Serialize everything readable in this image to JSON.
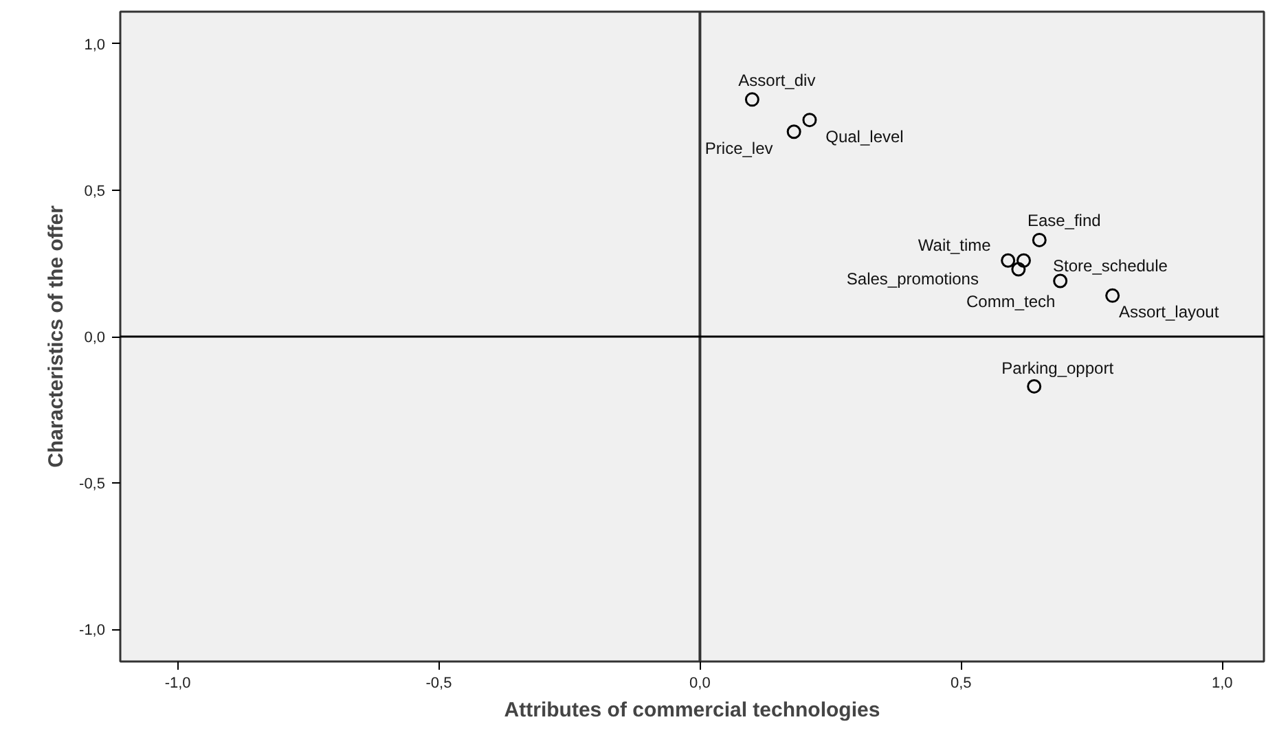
{
  "chart_data": {
    "type": "scatter",
    "xlabel": "Attributes of commercial technologies",
    "ylabel": "Characteristics of the offer",
    "xlim": [
      -1.11,
      1.08
    ],
    "ylim": [
      -1.11,
      1.11
    ],
    "xticks": [
      {
        "value": -1.0,
        "label": "-1,0"
      },
      {
        "value": -0.5,
        "label": "-0,5"
      },
      {
        "value": 0.0,
        "label": "0,0"
      },
      {
        "value": 0.5,
        "label": "0,5"
      },
      {
        "value": 1.0,
        "label": "1,0"
      }
    ],
    "yticks": [
      {
        "value": -1.0,
        "label": "-1,0"
      },
      {
        "value": -0.5,
        "label": "-0,5"
      },
      {
        "value": 0.0,
        "label": "0,0"
      },
      {
        "value": 0.5,
        "label": "0,5"
      },
      {
        "value": 1.0,
        "label": "1,0"
      }
    ],
    "x": [
      0.1,
      0.21,
      0.18,
      0.65,
      0.59,
      0.62,
      0.61,
      0.69,
      0.79,
      0.64
    ],
    "series": [
      {
        "color": "#000000",
        "values": [
          0.81,
          0.74,
          0.7,
          0.33,
          0.26,
          0.26,
          0.23,
          0.19,
          0.14,
          -0.17
        ]
      }
    ],
    "marker": "circle",
    "grid": false,
    "ref_lines": [
      {
        "axis": "x",
        "value": 0.0,
        "label": null,
        "color": "#333333"
      },
      {
        "axis": "y",
        "value": 0.0,
        "label": null,
        "color": "#000000"
      }
    ],
    "annotations": [
      {
        "text": "Assort_div",
        "x": 0.1,
        "y": 0.81
      },
      {
        "text": "Qual_level",
        "x": 0.21,
        "y": 0.74
      },
      {
        "text": "Price_lev",
        "x": 0.18,
        "y": 0.7
      },
      {
        "text": "Ease_find",
        "x": 0.65,
        "y": 0.33
      },
      {
        "text": "Wait_time",
        "x": 0.59,
        "y": 0.26
      },
      {
        "text": "Store_schedule",
        "x": 0.62,
        "y": 0.26
      },
      {
        "text": "Sales_promotions",
        "x": 0.61,
        "y": 0.23
      },
      {
        "text": "Comm_tech",
        "x": 0.69,
        "y": 0.19
      },
      {
        "text": "Assort_layout",
        "x": 0.79,
        "y": 0.14
      },
      {
        "text": "Parking_opport",
        "x": 0.64,
        "y": -0.17
      }
    ]
  }
}
